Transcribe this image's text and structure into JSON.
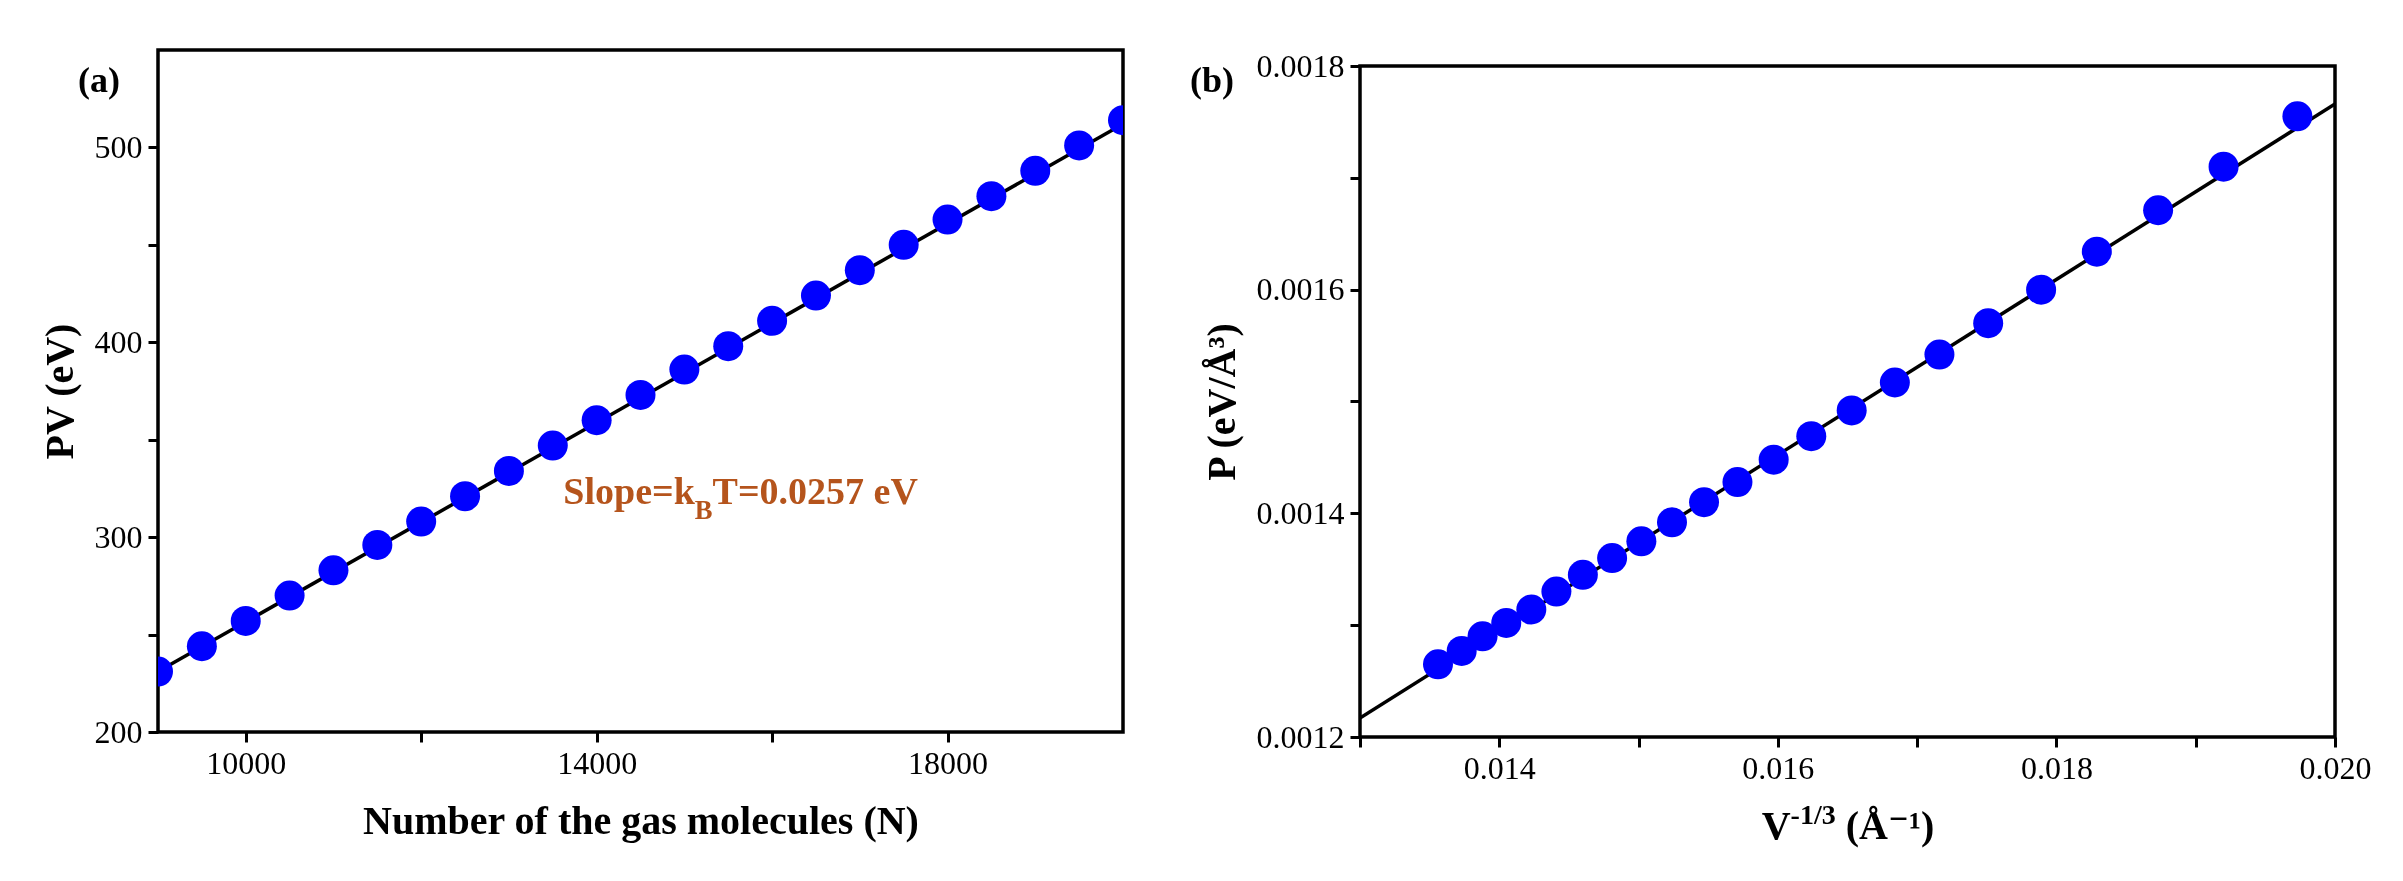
{
  "chart_data": [
    {
      "type": "scatter",
      "title": "(a)",
      "xlabel": "Number of the gas molecules (N)",
      "ylabel": "PV (eV)",
      "xlim": [
        9000,
        20000
      ],
      "xticks": [
        {
          "value": 10000,
          "label": "10000"
        },
        {
          "value": 12000,
          "label": null
        },
        {
          "value": 14000,
          "label": "14000"
        },
        {
          "value": 16000,
          "label": null
        },
        {
          "value": 18000,
          "label": "18000"
        }
      ],
      "ylim": [
        200,
        550
      ],
      "yticks": [
        200,
        {
          "value": 250,
          "label": null
        },
        300,
        {
          "value": 350,
          "label": null
        },
        400,
        {
          "value": 450,
          "label": null
        },
        500
      ],
      "grid": false,
      "annotations": [
        "Slope=k$_{B}$T=0.0257 eV"
      ],
      "series": [
        {
          "marker": "circle",
          "color": "#0000ff",
          "x": [
            9000,
            9500,
            10000,
            10500,
            11000,
            11500,
            12000,
            12500,
            13000,
            13500,
            14000,
            14500,
            15000,
            15500,
            16000,
            16500,
            17000,
            17500,
            18000,
            18500,
            19000,
            19500,
            20000
          ],
          "values": [
            231,
            244,
            257,
            270,
            283,
            296,
            308,
            321,
            334,
            347,
            360,
            373,
            386,
            398,
            411,
            424,
            437,
            450,
            463,
            475,
            488,
            501,
            514
          ]
        },
        {
          "type": "line",
          "color": "#000000",
          "line_style": "solid",
          "x": [
            9000,
            20000
          ],
          "values": [
            231,
            512
          ]
        }
      ]
    },
    {
      "type": "scatter",
      "title": "(b)",
      "xlabel": "V$^{-1/3}$ (Å⁻¹)",
      "ylabel": "P (eV/Å³)",
      "xlim": [
        0.013,
        0.02
      ],
      "xticks": [
        {
          "value": 0.013,
          "label": null
        },
        0.014,
        {
          "value": 0.015,
          "label": null
        },
        0.016,
        {
          "value": 0.017,
          "label": null
        },
        0.018,
        {
          "value": 0.019,
          "label": null
        },
        {
          "value": 0.02,
          "label": "0.020"
        }
      ],
      "ylim": [
        0.0012,
        0.0018
      ],
      "yticks": [
        0.0012,
        {
          "value": 0.0013,
          "label": null
        },
        0.0014,
        {
          "value": 0.0015,
          "label": null
        },
        0.0016,
        {
          "value": 0.0017,
          "label": null
        },
        0.0018
      ],
      "grid": false,
      "series": [
        {
          "marker": "circle",
          "color": "#0000ff",
          "x": [
            0.01356,
            0.01373,
            0.01388,
            0.01405,
            0.01423,
            0.01441,
            0.0146,
            0.01481,
            0.01502,
            0.01524,
            0.01547,
            0.01571,
            0.01597,
            0.01624,
            0.01653,
            0.01684,
            0.01716,
            0.01751,
            0.01789,
            0.01829,
            0.01873,
            0.0192,
            0.01973
          ],
          "values": [
            0.001265,
            0.001277,
            0.00129,
            0.001302,
            0.001314,
            0.00133,
            0.001345,
            0.00136,
            0.001375,
            0.001392,
            0.00141,
            0.001428,
            0.001448,
            0.001469,
            0.001492,
            0.001517,
            0.001542,
            0.00157,
            0.0016,
            0.001634,
            0.001671,
            0.00171,
            0.001755
          ]
        },
        {
          "type": "line",
          "color": "#000000",
          "line_style": "solid",
          "x": [
            0.013,
            0.02
          ],
          "values": [
            0.001217,
            0.001766
          ]
        }
      ]
    }
  ]
}
